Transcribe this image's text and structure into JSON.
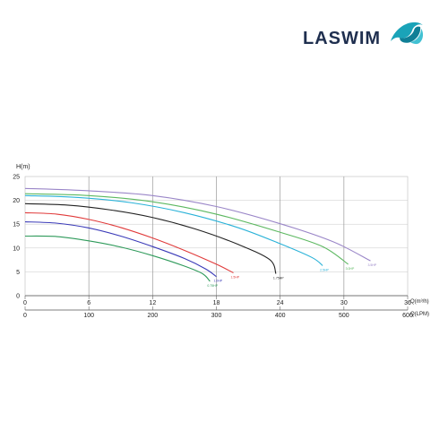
{
  "brand": {
    "name": "LASWIM",
    "text_color": "#1f2f4f",
    "mark_color": "#1aa3b8"
  },
  "chart_data": {
    "type": "line",
    "ylabel": "H(m)",
    "xlabel_primary": "Q(m³/h)",
    "xlabel_secondary": "Q(LPM)",
    "xlim": [
      0,
      36
    ],
    "ylim": [
      0,
      25
    ],
    "y_ticks": [
      0,
      5,
      10,
      15,
      20,
      25
    ],
    "x_ticks_primary": [
      0,
      6,
      12,
      18,
      24,
      30,
      36
    ],
    "x_ticks_secondary": [
      0,
      100,
      200,
      300,
      400,
      500,
      600
    ],
    "grid": true,
    "series": [
      {
        "name": "0.75HP",
        "color": "#2e9a5a",
        "points": [
          [
            0,
            12.5
          ],
          [
            3,
            12.4
          ],
          [
            6,
            11.5
          ],
          [
            9,
            10.2
          ],
          [
            12,
            8.4
          ],
          [
            15,
            6.2
          ],
          [
            16.7,
            4.6
          ],
          [
            17.4,
            3.0
          ]
        ]
      },
      {
        "name": "1.0HP",
        "color": "#3a3ab8",
        "points": [
          [
            0,
            15.5
          ],
          [
            3,
            15.2
          ],
          [
            6,
            14.2
          ],
          [
            9,
            12.5
          ],
          [
            12,
            10.3
          ],
          [
            15,
            7.8
          ],
          [
            17,
            5.6
          ],
          [
            18,
            4.0
          ]
        ]
      },
      {
        "name": "1.5HP",
        "color": "#e03a3a",
        "points": [
          [
            0,
            17.4
          ],
          [
            3,
            17.1
          ],
          [
            6,
            16.0
          ],
          [
            9,
            14.3
          ],
          [
            12,
            12.1
          ],
          [
            15,
            9.5
          ],
          [
            18,
            6.6
          ],
          [
            19.6,
            4.8
          ]
        ]
      },
      {
        "name": "1.75HP",
        "color": "#222222",
        "points": [
          [
            0,
            19.3
          ],
          [
            4,
            19.0
          ],
          [
            8,
            18.0
          ],
          [
            12,
            16.4
          ],
          [
            16,
            14.0
          ],
          [
            20,
            10.8
          ],
          [
            23,
            7.6
          ],
          [
            23.6,
            4.6
          ]
        ]
      },
      {
        "name": "2.5HP",
        "color": "#2ab2d8",
        "points": [
          [
            0,
            21.0
          ],
          [
            5,
            20.6
          ],
          [
            10,
            19.5
          ],
          [
            15,
            17.4
          ],
          [
            20,
            14.3
          ],
          [
            24,
            10.9
          ],
          [
            27,
            8.0
          ],
          [
            28,
            6.3
          ]
        ]
      },
      {
        "name": "3.0HP",
        "color": "#5cb860",
        "points": [
          [
            0,
            21.4
          ],
          [
            6,
            21.0
          ],
          [
            12,
            19.7
          ],
          [
            18,
            17.1
          ],
          [
            24,
            13.3
          ],
          [
            28,
            10.3
          ],
          [
            30.4,
            6.6
          ]
        ]
      },
      {
        "name": "3.5HP",
        "color": "#9a86c8",
        "points": [
          [
            0,
            22.5
          ],
          [
            6,
            22.0
          ],
          [
            12,
            21.0
          ],
          [
            18,
            18.7
          ],
          [
            24,
            15.1
          ],
          [
            29,
            11.3
          ],
          [
            32.5,
            7.3
          ]
        ]
      }
    ]
  }
}
